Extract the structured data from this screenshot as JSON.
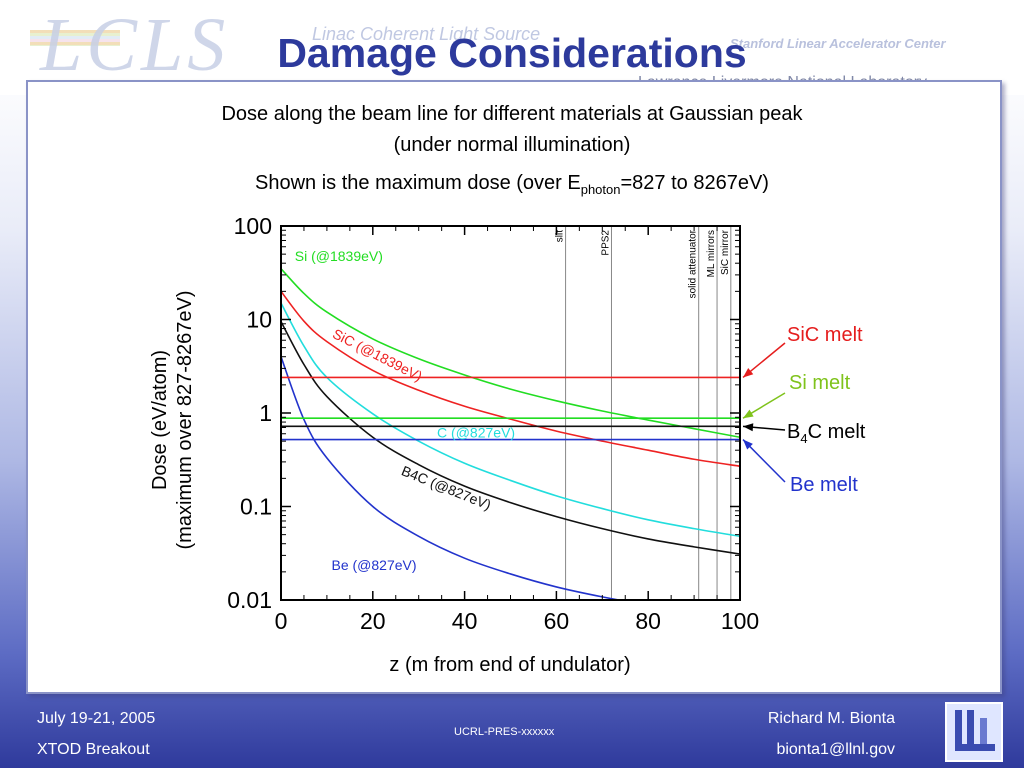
{
  "slide": {
    "title": "Damage Considerations",
    "subtitle_line1": "Dose along the beam line for different materials at Gaussian peak",
    "subtitle_line2": "(under normal illumination)",
    "subtitle_line3_pre": "Shown is the maximum dose (over E",
    "subtitle_line3_sub": "photon",
    "subtitle_line3_post": "=827 to 8267eV)"
  },
  "header": {
    "logo_text": "LCLS",
    "logo_subtitle": "Linac Coherent Light Source",
    "lab_subtitle": "Stanford Linear Accelerator Center",
    "llnl": "Lawrence Livermore National Laboratory"
  },
  "footer": {
    "date": "July 19-21, 2005",
    "event": "XTOD Breakout",
    "report": "UCRL-PRES-xxxxxx",
    "author": "Richard M. Bionta",
    "email": "bionta1@llnl.gov"
  },
  "chart_data": {
    "type": "line",
    "x_scale": "linear",
    "y_scale": "log",
    "xlim": [
      0,
      100
    ],
    "ylim": [
      0.01,
      100
    ],
    "xlabel": "z (m from end of undulator)",
    "ylabel_line1": "Dose (eV/atom)",
    "ylabel_line2": "(maximum over 827-8267eV)",
    "x_ticks": [
      0,
      20,
      40,
      60,
      80,
      100
    ],
    "y_ticks": [
      {
        "value": 0.01,
        "label": "0.01"
      },
      {
        "value": 0.1,
        "label": "0.1"
      },
      {
        "value": 1,
        "label": "1"
      },
      {
        "value": 10,
        "label": "10"
      },
      {
        "value": 100,
        "label": "100"
      }
    ],
    "series": [
      {
        "name": "Si (@1839eV)",
        "color": "#22dd22",
        "x": [
          0,
          5,
          10,
          20,
          30,
          40,
          50,
          60,
          70,
          80,
          90,
          100
        ],
        "y": [
          35,
          19,
          12,
          6.2,
          3.8,
          2.55,
          1.8,
          1.35,
          1.05,
          0.84,
          0.68,
          0.55
        ]
      },
      {
        "name": "SiC (@1839eV)",
        "color": "#ee2222",
        "x": [
          0,
          5,
          10,
          20,
          30,
          40,
          50,
          60,
          70,
          80,
          90,
          100
        ],
        "y": [
          20,
          9.6,
          5.8,
          2.85,
          1.75,
          1.18,
          0.86,
          0.64,
          0.5,
          0.4,
          0.32,
          0.27
        ]
      },
      {
        "name": "C (@827eV)",
        "color": "#22dddd",
        "x": [
          0,
          5,
          10,
          20,
          30,
          40,
          50,
          60,
          70,
          80,
          90,
          100
        ],
        "y": [
          15,
          5.2,
          2.4,
          0.98,
          0.5,
          0.29,
          0.19,
          0.13,
          0.095,
          0.072,
          0.058,
          0.048
        ]
      },
      {
        "name": "B4C (@827eV)",
        "color": "#111111",
        "x": [
          0,
          5,
          10,
          20,
          30,
          40,
          50,
          60,
          70,
          80,
          90,
          100
        ],
        "y": [
          9.5,
          3.3,
          1.5,
          0.55,
          0.28,
          0.165,
          0.11,
          0.078,
          0.058,
          0.045,
          0.037,
          0.031
        ]
      },
      {
        "name": "Be (@827eV)",
        "color": "#2233cc",
        "x": [
          0,
          5,
          10,
          20,
          30,
          40,
          50,
          60,
          70,
          80,
          90,
          100
        ],
        "y": [
          4,
          0.85,
          0.33,
          0.1,
          0.048,
          0.028,
          0.019,
          0.0138,
          0.0108,
          0.0088,
          0.0074,
          0.0064
        ]
      }
    ],
    "curve_labels": [
      {
        "text": "Si (@1839eV)",
        "series": "Si (@1839eV)",
        "x": 3,
        "y": 42,
        "angle": 0
      },
      {
        "text": "SiC (@1839eV)",
        "series": "SiC (@1839eV)",
        "x": 11,
        "y": 6.5,
        "angle": 27
      },
      {
        "text": "C (@827eV)",
        "series": "C (@827eV)",
        "x": 34,
        "y": 0.55,
        "angle": 0
      },
      {
        "text": "B4C (@827eV)",
        "series": "B4C (@827eV)",
        "x": 26,
        "y": 0.22,
        "angle": 22
      },
      {
        "text": "Be (@827eV)",
        "series": "Be (@827eV)",
        "x": 11,
        "y": 0.021,
        "angle": 0
      }
    ],
    "melt_lines": [
      {
        "name": "SiC melt",
        "value": 2.4,
        "color": "#ee2222"
      },
      {
        "name": "Si melt",
        "value": 0.88,
        "color": "#22dd22"
      },
      {
        "name": "B4C melt",
        "value": 0.72,
        "color": "#111111"
      },
      {
        "name": "Be melt",
        "value": 0.52,
        "color": "#2233cc"
      }
    ],
    "component_lines": [
      {
        "name": "slit",
        "z": 62
      },
      {
        "name": "PPS2",
        "z": 72
      },
      {
        "name": "solid attenuator",
        "z": 91
      },
      {
        "name": "ML mirrors",
        "z": 95
      },
      {
        "name": "SiC mirror",
        "z": 98
      }
    ],
    "grid": false
  }
}
